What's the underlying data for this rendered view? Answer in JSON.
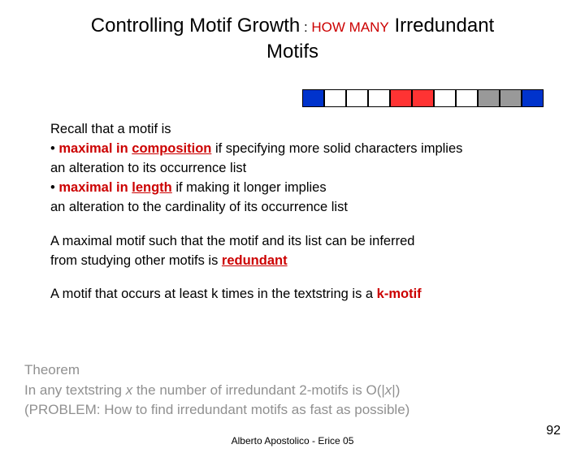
{
  "title": {
    "part1": "Controlling Motif Growth",
    "colon": " : ",
    "part2": "HOW MANY",
    "part3": " Irredundant",
    "line2": "Motifs"
  },
  "cells": {
    "colors": [
      "#0033cc",
      "#ffffff",
      "#ffffff",
      "#ffffff",
      "#ff3333",
      "#ff3333",
      "#ffffff",
      "#ffffff",
      "#999999",
      "#999999",
      "#0033cc"
    ]
  },
  "body": {
    "recall": "Recall that a motif is",
    "bullet": "• ",
    "max_in": "maximal in",
    "composition": "composition",
    "comp_rest": " if specifying more solid characters implies",
    "comp_line2": "an alteration to its occurrence list",
    "length": "length",
    "len_rest": " if making it longer implies",
    "len_line2": "an alteration to the cardinality of its occurrence list",
    "para2_a": "A maximal motif such that the motif and its list can be inferred",
    "para2_b": "from studying other motifs is ",
    "redundant": "redundant",
    "para3_a": "A motif that occurs at least k times in the textstring is a ",
    "kmotif": "k-motif"
  },
  "theorem": {
    "l1": "Theorem",
    "l2a": "In any textstring ",
    "l2x": "x",
    "l2b": "  the number of irredundant 2-motifs is O(|",
    "l2x2": "x",
    "l2c": "|)",
    "l3": "(PROBLEM: How to find irredundant motifs as fast as possible)"
  },
  "footer": {
    "center": "Alberto Apostolico  - Erice 05",
    "page": "92"
  }
}
